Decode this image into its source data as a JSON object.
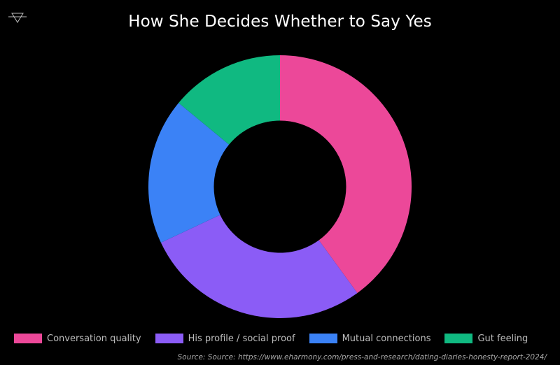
{
  "title": "How She Decides Whether to Say Yes",
  "logo": {
    "icon": "triangle-down-icon"
  },
  "legend": {
    "items": [
      {
        "label": "Conversation quality",
        "color": "#EC4899"
      },
      {
        "label": "His profile / social proof",
        "color": "#8B5CF6"
      },
      {
        "label": "Mutual connections",
        "color": "#3B82F6"
      },
      {
        "label": "Gut feeling",
        "color": "#10B981"
      }
    ]
  },
  "source": "Source: Source: https://www.eharmony.com/press-and-research/dating-diaries-honesty-report-2024/",
  "chart_data": {
    "type": "pie",
    "variant": "donut",
    "title": "How She Decides Whether to Say Yes",
    "categories": [
      "Conversation quality",
      "His profile / social proof",
      "Mutual connections",
      "Gut feeling"
    ],
    "values": [
      40,
      28,
      18,
      14
    ],
    "colors": [
      "#EC4899",
      "#8B5CF6",
      "#3B82F6",
      "#10B981"
    ],
    "legend_position": "bottom",
    "start_angle": "12 o'clock, clockwise",
    "source": "Source: Source: https://www.eharmony.com/press-and-research/dating-diaries-honesty-report-2024/"
  }
}
